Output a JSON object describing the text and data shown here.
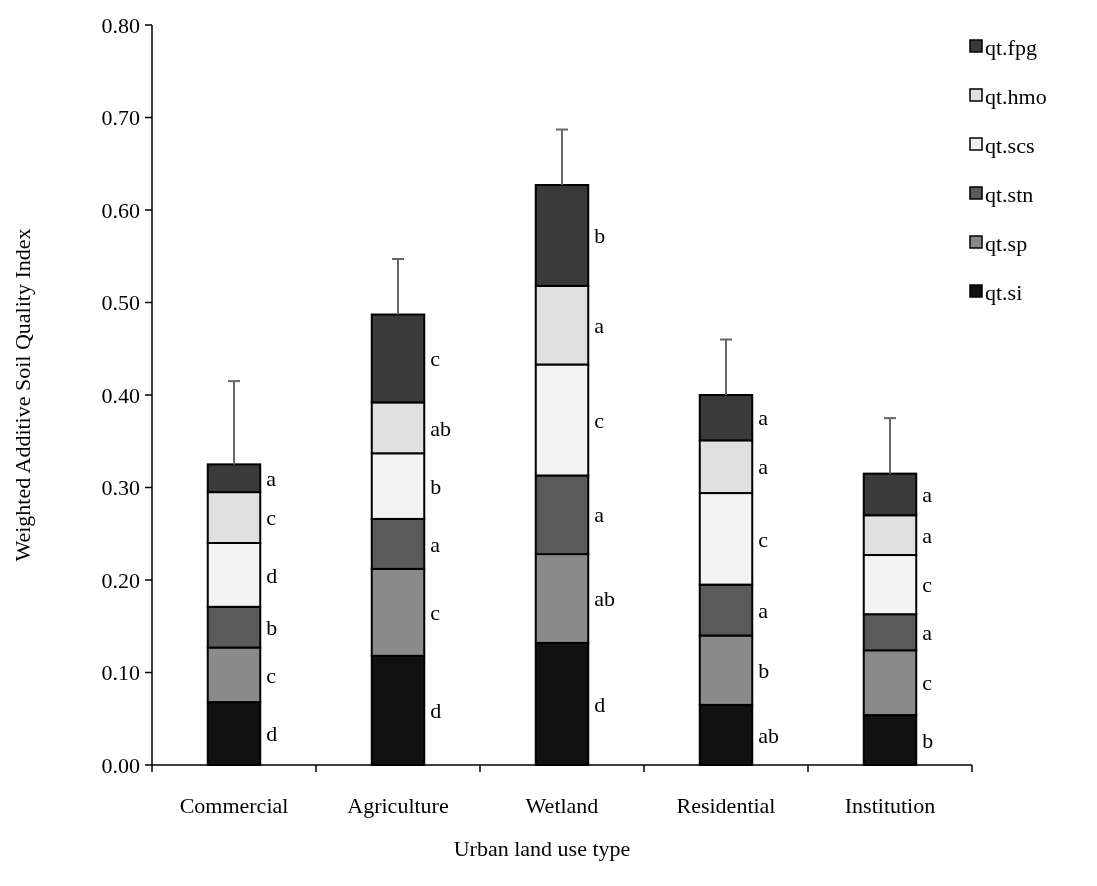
{
  "chart_data": {
    "type": "bar",
    "stacked": true,
    "xlabel": "Urban land use type",
    "ylabel": "Weighted Additive Soil Quality Index",
    "categories": [
      "Commercial",
      "Agriculture",
      "Wetland",
      "Residential",
      "Institution"
    ],
    "ylim": [
      0,
      0.8
    ],
    "yticks": [
      {
        "value": 0,
        "label": "0.00"
      },
      {
        "value": 0.1,
        "label": "0.10"
      },
      {
        "value": 0.2,
        "label": "0.20"
      },
      {
        "value": 0.3,
        "label": "0.30"
      },
      {
        "value": 0.4,
        "label": "0.40"
      },
      {
        "value": 0.5,
        "label": "0.50"
      },
      {
        "value": 0.6,
        "label": "0.60"
      },
      {
        "value": 0.7,
        "label": "0.70"
      },
      {
        "value": 0.8,
        "label": "0.80"
      }
    ],
    "legend": "right",
    "series": [
      {
        "name": "qt.si",
        "color": "#111111",
        "values": [
          0.068,
          0.118,
          0.132,
          0.065,
          0.054
        ],
        "value_labels": [
          "d",
          "d",
          "d",
          "ab",
          "b"
        ]
      },
      {
        "name": "qt.sp",
        "color": "#8a8a8a",
        "values": [
          0.059,
          0.094,
          0.096,
          0.075,
          0.07
        ],
        "value_labels": [
          "c",
          "c",
          "ab",
          "b",
          "c"
        ]
      },
      {
        "name": "qt.stn",
        "color": "#5a5a5a",
        "values": [
          0.044,
          0.054,
          0.085,
          0.055,
          0.039
        ],
        "value_labels": [
          "b",
          "a",
          "a",
          "a",
          "a"
        ]
      },
      {
        "name": "qt.scs",
        "color": "#f2f2f2",
        "values": [
          0.069,
          0.071,
          0.12,
          0.099,
          0.064
        ],
        "value_labels": [
          "d",
          "b",
          "c",
          "c",
          "c"
        ]
      },
      {
        "name": "qt.hmo",
        "color": "#e0e0e0",
        "values": [
          0.055,
          0.055,
          0.085,
          0.057,
          0.043
        ],
        "value_labels": [
          "c",
          "ab",
          "a",
          "a",
          "a"
        ]
      },
      {
        "name": "qt.fpg",
        "color": "#3a3a3a",
        "values": [
          0.03,
          0.095,
          0.109,
          0.049,
          0.045
        ],
        "value_labels": [
          "a",
          "c",
          "b",
          "a",
          "a"
        ],
        "errors": [
          [
            0.325,
            0.415
          ],
          [
            0.487,
            0.547
          ],
          [
            0.627,
            0.687
          ],
          [
            0.4,
            0.46
          ],
          [
            0.315,
            0.375
          ]
        ]
      }
    ]
  }
}
